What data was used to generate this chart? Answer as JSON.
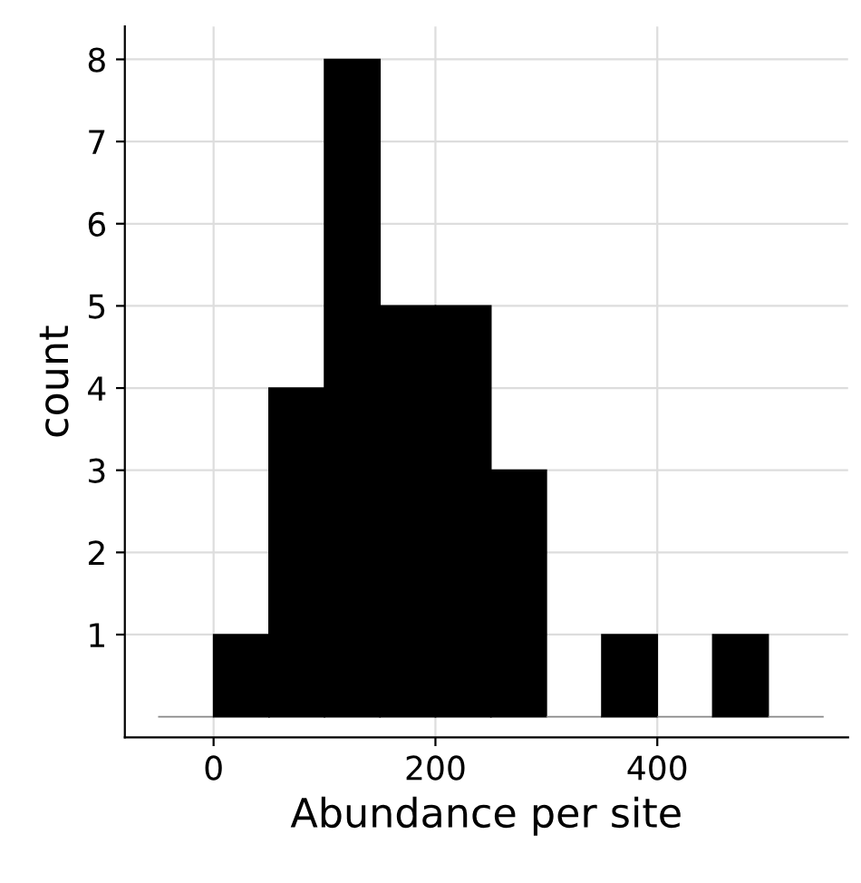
{
  "chart_data": {
    "type": "histogram",
    "xlabel": "Abundance per site",
    "ylabel": "count",
    "bins": [
      -50,
      0,
      50,
      100,
      150,
      200,
      250,
      300,
      350,
      400,
      450,
      500,
      550
    ],
    "values": [
      0,
      1,
      4,
      8,
      5,
      5,
      3,
      0,
      1,
      0,
      1,
      0
    ],
    "colors": [
      "#888888",
      "#000000",
      "#000000",
      "#000000",
      "#000000",
      "#000000",
      "#000000",
      "#888888",
      "#000000",
      "#888888",
      "#000000",
      "#888888"
    ],
    "xlim": [
      -80,
      572
    ],
    "xticks": [
      0,
      200,
      400
    ],
    "ylim": [
      -0.25,
      8.4
    ],
    "yticks": [
      1,
      2,
      3,
      4,
      5,
      6,
      7,
      8
    ],
    "grid": true
  }
}
